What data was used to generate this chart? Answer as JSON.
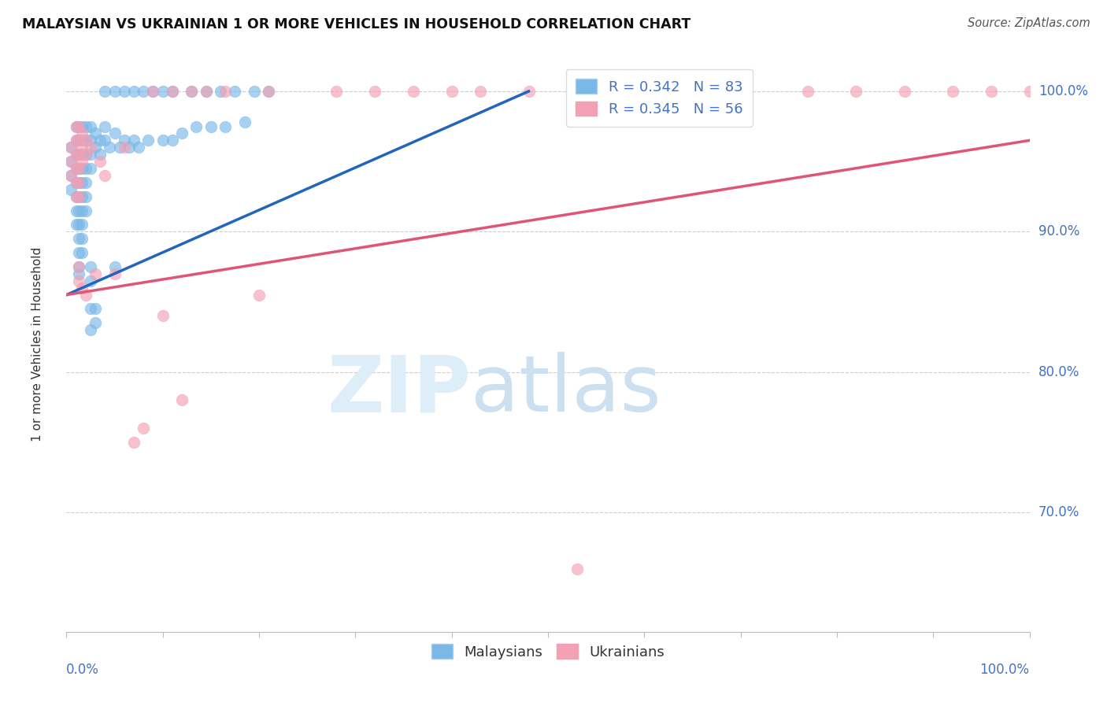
{
  "title": "MALAYSIAN VS UKRAINIAN 1 OR MORE VEHICLES IN HOUSEHOLD CORRELATION CHART",
  "source": "Source: ZipAtlas.com",
  "ylabel": "1 or more Vehicles in Household",
  "yticks_right": [
    "70.0%",
    "80.0%",
    "90.0%",
    "100.0%"
  ],
  "yticks_values": [
    0.7,
    0.8,
    0.9,
    1.0
  ],
  "xrange": [
    0.0,
    1.0
  ],
  "yrange": [
    0.615,
    1.025
  ],
  "legend_r_blue": "R = 0.342",
  "legend_n_blue": "N = 83",
  "legend_r_pink": "R = 0.345",
  "legend_n_pink": "N = 56",
  "blue_color": "#7ab8e8",
  "pink_color": "#f4a0b5",
  "trendline_blue": [
    [
      0.0,
      0.855
    ],
    [
      0.48,
      1.0
    ]
  ],
  "trendline_pink": [
    [
      0.0,
      0.855
    ],
    [
      1.0,
      0.965
    ]
  ],
  "blue_points": [
    [
      0.005,
      0.96
    ],
    [
      0.005,
      0.95
    ],
    [
      0.005,
      0.94
    ],
    [
      0.005,
      0.93
    ],
    [
      0.01,
      0.975
    ],
    [
      0.01,
      0.965
    ],
    [
      0.01,
      0.955
    ],
    [
      0.01,
      0.945
    ],
    [
      0.01,
      0.935
    ],
    [
      0.01,
      0.925
    ],
    [
      0.01,
      0.915
    ],
    [
      0.01,
      0.905
    ],
    [
      0.013,
      0.975
    ],
    [
      0.013,
      0.965
    ],
    [
      0.013,
      0.955
    ],
    [
      0.013,
      0.945
    ],
    [
      0.013,
      0.935
    ],
    [
      0.013,
      0.925
    ],
    [
      0.013,
      0.915
    ],
    [
      0.013,
      0.905
    ],
    [
      0.013,
      0.895
    ],
    [
      0.013,
      0.885
    ],
    [
      0.013,
      0.875
    ],
    [
      0.013,
      0.87
    ],
    [
      0.016,
      0.975
    ],
    [
      0.016,
      0.965
    ],
    [
      0.016,
      0.955
    ],
    [
      0.016,
      0.945
    ],
    [
      0.016,
      0.935
    ],
    [
      0.016,
      0.925
    ],
    [
      0.016,
      0.915
    ],
    [
      0.016,
      0.905
    ],
    [
      0.016,
      0.895
    ],
    [
      0.016,
      0.885
    ],
    [
      0.02,
      0.975
    ],
    [
      0.02,
      0.965
    ],
    [
      0.02,
      0.955
    ],
    [
      0.02,
      0.945
    ],
    [
      0.02,
      0.935
    ],
    [
      0.02,
      0.925
    ],
    [
      0.02,
      0.915
    ],
    [
      0.025,
      0.975
    ],
    [
      0.025,
      0.965
    ],
    [
      0.025,
      0.955
    ],
    [
      0.025,
      0.945
    ],
    [
      0.025,
      0.875
    ],
    [
      0.025,
      0.865
    ],
    [
      0.03,
      0.97
    ],
    [
      0.03,
      0.96
    ],
    [
      0.035,
      0.965
    ],
    [
      0.035,
      0.955
    ],
    [
      0.04,
      0.975
    ],
    [
      0.04,
      0.965
    ],
    [
      0.045,
      0.96
    ],
    [
      0.05,
      0.97
    ],
    [
      0.05,
      0.875
    ],
    [
      0.055,
      0.96
    ],
    [
      0.06,
      0.965
    ],
    [
      0.065,
      0.96
    ],
    [
      0.07,
      0.965
    ],
    [
      0.075,
      0.96
    ],
    [
      0.085,
      0.965
    ],
    [
      0.1,
      0.965
    ],
    [
      0.11,
      0.965
    ],
    [
      0.12,
      0.97
    ],
    [
      0.135,
      0.975
    ],
    [
      0.15,
      0.975
    ],
    [
      0.165,
      0.975
    ],
    [
      0.185,
      0.978
    ],
    [
      0.025,
      0.845
    ],
    [
      0.025,
      0.83
    ],
    [
      0.03,
      0.845
    ],
    [
      0.03,
      0.835
    ]
  ],
  "blue_top_points": [
    [
      0.04,
      1.0
    ],
    [
      0.05,
      1.0
    ],
    [
      0.06,
      1.0
    ],
    [
      0.07,
      1.0
    ],
    [
      0.08,
      1.0
    ],
    [
      0.09,
      1.0
    ],
    [
      0.1,
      1.0
    ],
    [
      0.11,
      1.0
    ],
    [
      0.13,
      1.0
    ],
    [
      0.145,
      1.0
    ],
    [
      0.16,
      1.0
    ],
    [
      0.175,
      1.0
    ],
    [
      0.195,
      1.0
    ],
    [
      0.21,
      1.0
    ]
  ],
  "pink_points": [
    [
      0.005,
      0.96
    ],
    [
      0.005,
      0.95
    ],
    [
      0.005,
      0.94
    ],
    [
      0.01,
      0.975
    ],
    [
      0.01,
      0.965
    ],
    [
      0.01,
      0.955
    ],
    [
      0.01,
      0.945
    ],
    [
      0.01,
      0.935
    ],
    [
      0.01,
      0.925
    ],
    [
      0.013,
      0.975
    ],
    [
      0.013,
      0.965
    ],
    [
      0.013,
      0.955
    ],
    [
      0.013,
      0.945
    ],
    [
      0.013,
      0.935
    ],
    [
      0.013,
      0.925
    ],
    [
      0.013,
      0.875
    ],
    [
      0.013,
      0.865
    ],
    [
      0.016,
      0.97
    ],
    [
      0.016,
      0.96
    ],
    [
      0.016,
      0.95
    ],
    [
      0.016,
      0.86
    ],
    [
      0.02,
      0.965
    ],
    [
      0.02,
      0.955
    ],
    [
      0.02,
      0.855
    ],
    [
      0.025,
      0.96
    ],
    [
      0.03,
      0.87
    ],
    [
      0.035,
      0.95
    ],
    [
      0.04,
      0.94
    ],
    [
      0.05,
      0.87
    ],
    [
      0.06,
      0.96
    ],
    [
      0.07,
      0.75
    ],
    [
      0.08,
      0.76
    ],
    [
      0.1,
      0.84
    ],
    [
      0.12,
      0.78
    ],
    [
      0.2,
      0.855
    ],
    [
      0.53,
      0.66
    ]
  ],
  "pink_top_points": [
    [
      0.09,
      1.0
    ],
    [
      0.11,
      1.0
    ],
    [
      0.13,
      1.0
    ],
    [
      0.145,
      1.0
    ],
    [
      0.165,
      1.0
    ],
    [
      0.21,
      1.0
    ],
    [
      0.28,
      1.0
    ],
    [
      0.32,
      1.0
    ],
    [
      0.36,
      1.0
    ],
    [
      0.4,
      1.0
    ],
    [
      0.43,
      1.0
    ],
    [
      0.48,
      1.0
    ],
    [
      0.56,
      1.0
    ],
    [
      0.61,
      1.0
    ],
    [
      0.65,
      1.0
    ],
    [
      0.7,
      1.0
    ],
    [
      0.77,
      1.0
    ],
    [
      0.82,
      1.0
    ],
    [
      0.87,
      1.0
    ],
    [
      0.92,
      1.0
    ],
    [
      0.96,
      1.0
    ],
    [
      1.0,
      1.0
    ]
  ]
}
